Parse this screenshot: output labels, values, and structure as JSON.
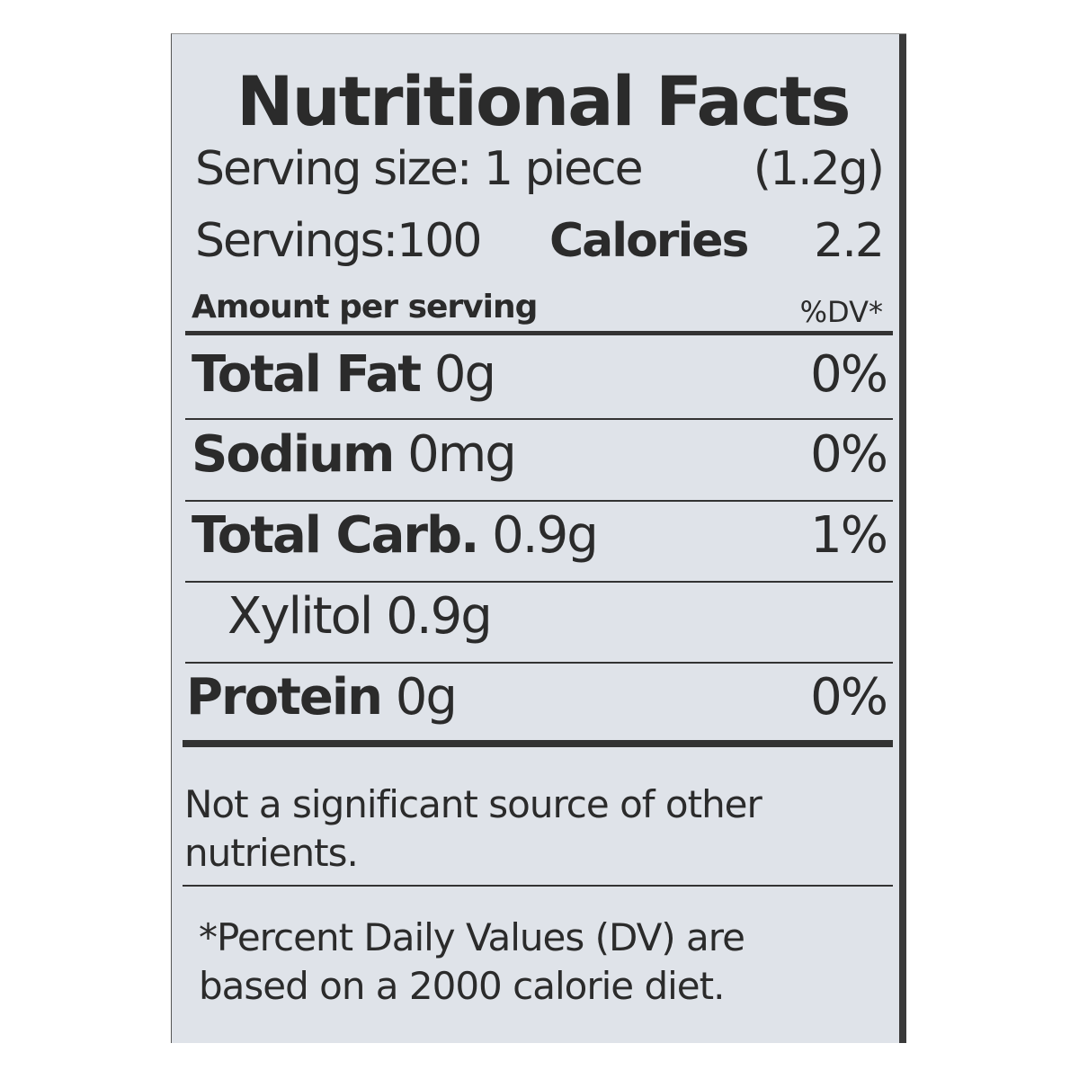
{
  "title": "Nutritional Facts",
  "serving_size": {
    "label": "Serving size: 1 piece",
    "weight": "(1.2g)"
  },
  "servings": {
    "label": "Servings:100",
    "calories_label": "Calories",
    "calories_value": "2.2"
  },
  "header": {
    "amount": "Amount per serving",
    "dv": "%DV*"
  },
  "rows": [
    {
      "name": "Total Fat",
      "amount": "0g",
      "dv": "0%"
    },
    {
      "name": "Sodium",
      "amount": "0mg",
      "dv": "0%"
    },
    {
      "name": "Total Carb.",
      "amount": "0.9g",
      "dv": "1%"
    },
    {
      "name": "",
      "amount": "Xylitol 0.9g",
      "dv": ""
    },
    {
      "name": "Protein",
      "amount": "0g",
      "dv": "0%"
    }
  ],
  "note": [
    "Not a significant source of other",
    "nutrients."
  ],
  "footnote": [
    "*Percent Daily Values (DV) are",
    "based on a 2000 calorie diet."
  ]
}
